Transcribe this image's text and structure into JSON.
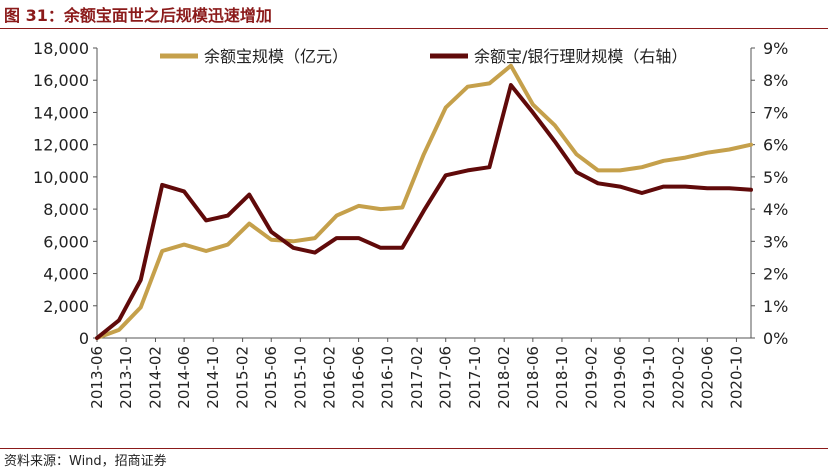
{
  "figure": {
    "title": "图 31：余额宝面世之后规模迅速增加",
    "source": "资料来源：Wind，招商证券"
  },
  "colors": {
    "accent": "#8B1A1A",
    "series_scale": "#C5A04B",
    "series_ratio": "#600A0A"
  },
  "chart_data": {
    "type": "line",
    "x_ticks": [
      "2013-06",
      "2013-10",
      "2014-02",
      "2014-06",
      "2014-10",
      "2015-02",
      "2015-06",
      "2015-10",
      "2016-02",
      "2016-06",
      "2016-10",
      "2017-02",
      "2017-06",
      "2017-10",
      "2018-02",
      "2018-06",
      "2018-10",
      "2019-02",
      "2019-06",
      "2019-10",
      "2020-02",
      "2020-06",
      "2020-10"
    ],
    "x": [
      "2013-06",
      "2013-09",
      "2013-12",
      "2014-03",
      "2014-06",
      "2014-09",
      "2014-12",
      "2015-03",
      "2015-06",
      "2015-09",
      "2015-12",
      "2016-03",
      "2016-06",
      "2016-09",
      "2016-12",
      "2017-03",
      "2017-06",
      "2017-09",
      "2017-12",
      "2018-03",
      "2018-06",
      "2018-09",
      "2018-12",
      "2019-03",
      "2019-06",
      "2019-09",
      "2019-12",
      "2020-03",
      "2020-06",
      "2020-09",
      "2020-12"
    ],
    "legend_position": "top",
    "grid": false,
    "y_left": {
      "min": 0,
      "max": 18000,
      "step": 2000,
      "tick_labels": [
        "0",
        "2,000",
        "4,000",
        "6,000",
        "8,000",
        "10,000",
        "12,000",
        "14,000",
        "16,000",
        "18,000"
      ]
    },
    "y_right": {
      "min": 0,
      "max": 9,
      "step": 1,
      "tick_labels": [
        "0%",
        "1%",
        "2%",
        "3%",
        "4%",
        "5%",
        "6%",
        "7%",
        "8%",
        "9%"
      ]
    },
    "series": [
      {
        "name": "余额宝规模（亿元）",
        "axis": "left",
        "color": "#C5A04B",
        "values": [
          0,
          500,
          1900,
          5400,
          5800,
          5400,
          5800,
          7100,
          6100,
          6000,
          6200,
          7600,
          8200,
          8000,
          8100,
          11400,
          14300,
          15600,
          15800,
          16900,
          14500,
          13200,
          11400,
          10400,
          10400,
          10600,
          11000,
          11200,
          11500,
          11700,
          12000
        ]
      },
      {
        "name": "余额宝/银行理财规模（右轴）",
        "axis": "right",
        "color": "#600A0A",
        "values": [
          0,
          0.55,
          1.8,
          4.75,
          4.55,
          3.65,
          3.8,
          4.45,
          3.3,
          2.8,
          2.65,
          3.1,
          3.1,
          2.8,
          2.8,
          3.95,
          5.05,
          5.2,
          5.3,
          7.85,
          7.0,
          6.1,
          5.15,
          4.8,
          4.7,
          4.5,
          4.7,
          4.7,
          4.65,
          4.65,
          4.6
        ]
      }
    ]
  }
}
